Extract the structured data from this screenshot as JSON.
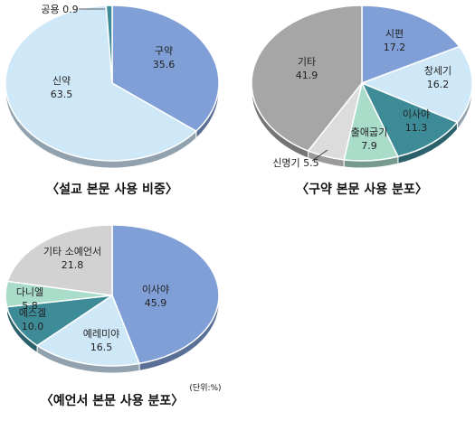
{
  "chart_data": [
    {
      "type": "pie",
      "title": "〈설교 본문 사용 비중〉",
      "slices": [
        {
          "name": "구약",
          "value": 35.6,
          "color": "#7f9fd6"
        },
        {
          "name": "신약",
          "value": 63.5,
          "color": "#cfe8f8"
        },
        {
          "name": "공용",
          "value": 0.9,
          "color": "#3e8b98"
        }
      ]
    },
    {
      "type": "pie",
      "title": "〈구약 본문 사용 분포〉",
      "slices": [
        {
          "name": "시편",
          "value": 17.2,
          "color": "#7f9fd6"
        },
        {
          "name": "창세기",
          "value": 16.2,
          "color": "#cfe8f8"
        },
        {
          "name": "이사야",
          "value": 11.3,
          "color": "#3e8b98"
        },
        {
          "name": "출애굽기",
          "value": 7.9,
          "color": "#a9dcc9"
        },
        {
          "name": "신명기",
          "value": 5.5,
          "color": "#dcdcdc"
        },
        {
          "name": "기타",
          "value": 41.9,
          "color": "#a6a6a6"
        }
      ]
    },
    {
      "type": "pie",
      "title": "〈예언서 본문 사용 분포〉",
      "unit": "(단위:%)",
      "slices": [
        {
          "name": "이사야",
          "value": 45.9,
          "color": "#7f9fd6"
        },
        {
          "name": "예레미야",
          "value": 16.5,
          "color": "#cfe8f8"
        },
        {
          "name": "에스겔",
          "value": 10.0,
          "color": "#3e8b98"
        },
        {
          "name": "다니엘",
          "value": 5.8,
          "color": "#a9dcc9"
        },
        {
          "name": "기타 소예언서",
          "value": 21.8,
          "color": "#d2d2d2"
        }
      ]
    }
  ]
}
